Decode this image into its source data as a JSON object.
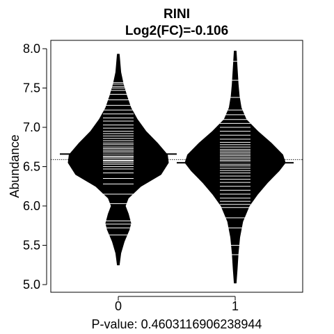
{
  "chart_data": {
    "type": "beanplot",
    "title": "RINI",
    "subtitle": "Log2(FC)=-0.106",
    "xlabel": "P-value: 0.4603116906238944",
    "ylabel": "Abundance",
    "categories": [
      "0",
      "1"
    ],
    "ylim": [
      4.95,
      8.1
    ],
    "yticks": [
      5.0,
      5.5,
      6.0,
      6.5,
      7.0,
      7.5,
      8.0
    ],
    "ytick_labels": [
      "5.0",
      "5.5",
      "6.0",
      "6.5",
      "7.0",
      "7.5",
      "8.0"
    ],
    "overall_mean": 6.59,
    "grid": false,
    "legend": "none",
    "series": [
      {
        "group": "0",
        "mean": 6.66,
        "range": [
          5.25,
          7.93
        ],
        "density": [
          [
            5.25,
            0.02
          ],
          [
            5.4,
            0.05
          ],
          [
            5.55,
            0.12
          ],
          [
            5.7,
            0.22
          ],
          [
            5.78,
            0.25
          ],
          [
            5.9,
            0.2
          ],
          [
            6.0,
            0.14
          ],
          [
            6.1,
            0.2
          ],
          [
            6.25,
            0.45
          ],
          [
            6.4,
            0.85
          ],
          [
            6.55,
            1.0
          ],
          [
            6.65,
            0.98
          ],
          [
            6.8,
            0.78
          ],
          [
            6.95,
            0.55
          ],
          [
            7.1,
            0.38
          ],
          [
            7.25,
            0.25
          ],
          [
            7.4,
            0.17
          ],
          [
            7.55,
            0.1
          ],
          [
            7.7,
            0.05
          ],
          [
            7.93,
            0.02
          ]
        ],
        "observations": [
          5.63,
          5.72,
          5.77,
          5.81,
          6.03,
          6.15,
          6.28,
          6.35,
          6.42,
          6.47,
          6.5,
          6.53,
          6.55,
          6.57,
          6.58,
          6.6,
          6.62,
          6.63,
          6.65,
          6.67,
          6.69,
          6.71,
          6.73,
          6.75,
          6.78,
          6.8,
          6.83,
          6.86,
          6.89,
          6.92,
          6.95,
          6.99,
          7.03,
          7.08,
          7.12,
          7.17,
          7.22,
          7.28,
          7.35,
          7.42,
          7.47,
          7.5,
          7.52,
          7.55,
          7.57
        ]
      },
      {
        "group": "1",
        "mean": 6.55,
        "range": [
          5.02,
          7.97
        ],
        "density": [
          [
            5.02,
            0.02
          ],
          [
            5.2,
            0.04
          ],
          [
            5.4,
            0.06
          ],
          [
            5.6,
            0.09
          ],
          [
            5.8,
            0.15
          ],
          [
            6.0,
            0.28
          ],
          [
            6.15,
            0.45
          ],
          [
            6.3,
            0.65
          ],
          [
            6.45,
            0.88
          ],
          [
            6.55,
            1.0
          ],
          [
            6.65,
            0.95
          ],
          [
            6.8,
            0.72
          ],
          [
            6.95,
            0.45
          ],
          [
            7.1,
            0.22
          ],
          [
            7.25,
            0.12
          ],
          [
            7.4,
            0.08
          ],
          [
            7.55,
            0.06
          ],
          [
            7.75,
            0.04
          ],
          [
            7.97,
            0.02
          ]
        ],
        "observations": [
          5.38,
          5.5,
          5.72,
          5.85,
          5.98,
          6.02,
          6.06,
          6.1,
          6.15,
          6.2,
          6.25,
          6.3,
          6.34,
          6.38,
          6.42,
          6.45,
          6.48,
          6.51,
          6.53,
          6.56,
          6.58,
          6.6,
          6.62,
          6.64,
          6.66,
          6.68,
          6.7,
          6.72,
          6.75,
          6.78,
          6.81,
          6.85,
          6.9,
          6.95,
          7.0,
          7.05,
          7.1,
          7.16,
          7.22,
          7.38,
          7.6,
          7.84
        ]
      }
    ]
  },
  "colors": {
    "bean": "#000000",
    "observation_line": "#ffffff",
    "background": "#ffffff"
  }
}
